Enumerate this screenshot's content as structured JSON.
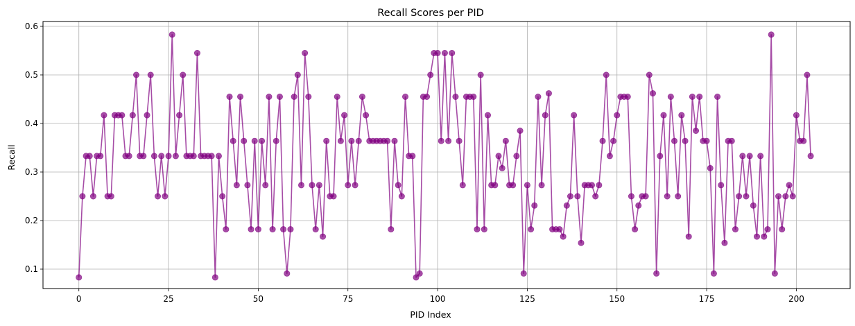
{
  "chart_data": {
    "type": "line",
    "title": "Recall Scores per PID",
    "xlabel": "PID Index",
    "ylabel": "Recall",
    "xlim": [
      -10,
      215
    ],
    "ylim": [
      0.06,
      0.61
    ],
    "xticks": [
      0,
      25,
      50,
      75,
      100,
      125,
      150,
      175,
      200
    ],
    "yticks": [
      0.1,
      0.2,
      0.3,
      0.4,
      0.5,
      0.6
    ],
    "grid": true,
    "color": "#800080",
    "series": [
      {
        "values": [
          0.083,
          0.25,
          0.333,
          0.333,
          0.25,
          0.333,
          0.333,
          0.417,
          0.25,
          0.25,
          0.417,
          0.417,
          0.417,
          0.333,
          0.333,
          0.417,
          0.5,
          0.333,
          0.333,
          0.417,
          0.5,
          0.333,
          0.25,
          0.333,
          0.25,
          0.333,
          0.583,
          0.333,
          0.417,
          0.5,
          0.333,
          0.333,
          0.333,
          0.545,
          0.333,
          0.333,
          0.333,
          0.333,
          0.083,
          0.333,
          0.25,
          0.182,
          0.455,
          0.364,
          0.273,
          0.455,
          0.364,
          0.273,
          0.182,
          0.364,
          0.182,
          0.364,
          0.273,
          0.455,
          0.182,
          0.364,
          0.455,
          0.182,
          0.091,
          0.182,
          0.455,
          0.5,
          0.273,
          0.545,
          0.455,
          0.273,
          0.182,
          0.273,
          0.167,
          0.364,
          0.25,
          0.25,
          0.455,
          0.364,
          0.417,
          0.273,
          0.364,
          0.273,
          0.364,
          0.455,
          0.417,
          0.364,
          0.364,
          0.364,
          0.364,
          0.364,
          0.364,
          0.182,
          0.364,
          0.273,
          0.25,
          0.455,
          0.333,
          0.333,
          0.083,
          0.091,
          0.455,
          0.455,
          0.5,
          0.545,
          0.545,
          0.364,
          0.545,
          0.364,
          0.545,
          0.455,
          0.364,
          0.273,
          0.455,
          0.455,
          0.455,
          0.182,
          0.5,
          0.182,
          0.417,
          0.273,
          0.273,
          0.333,
          0.308,
          0.364,
          0.273,
          0.273,
          0.333,
          0.385,
          0.091,
          0.273,
          0.182,
          0.231,
          0.455,
          0.273,
          0.417,
          0.462,
          0.182,
          0.182,
          0.182,
          0.167,
          0.231,
          0.25,
          0.417,
          0.25,
          0.154,
          0.273,
          0.273,
          0.273,
          0.25,
          0.273,
          0.364,
          0.5,
          0.333,
          0.364,
          0.417,
          0.455,
          0.455,
          0.455,
          0.25,
          0.182,
          0.231,
          0.25,
          0.25,
          0.5,
          0.462,
          0.091,
          0.333,
          0.417,
          0.25,
          0.455,
          0.364,
          0.25,
          0.417,
          0.364,
          0.167,
          0.455,
          0.385,
          0.455,
          0.364,
          0.364,
          0.308,
          0.091,
          0.455,
          0.273,
          0.154,
          0.364,
          0.364,
          0.182,
          0.25,
          0.333,
          0.25,
          0.333,
          0.231,
          0.167,
          0.333,
          0.167,
          0.182,
          0.583,
          0.091,
          0.25,
          0.182,
          0.25,
          0.273,
          0.25,
          0.417,
          0.364,
          0.364,
          0.5,
          0.333
        ]
      }
    ]
  }
}
